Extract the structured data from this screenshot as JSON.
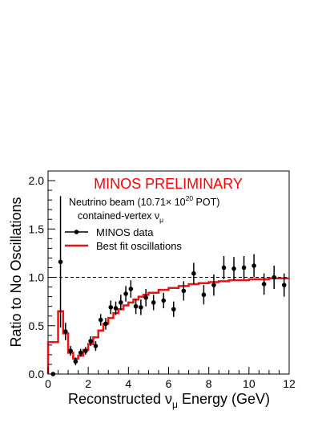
{
  "chart_data": {
    "type": "line",
    "title": "MINOS PRELIMINARY",
    "title_color": "#ff0000",
    "xlabel": "Reconstructed ν_μ Energy (GeV)",
    "xlabel_parts": {
      "pre": "Reconstructed ",
      "nu": "ν",
      "mu": "μ",
      "post": " Energy (GeV)"
    },
    "ylabel": "Ratio to No Oscillations",
    "xlim": [
      0,
      12
    ],
    "ylim": [
      0,
      2.1
    ],
    "xticks": [
      "0",
      "2",
      "4",
      "6",
      "8",
      "10",
      "12"
    ],
    "yticks": [
      "0.0",
      "0.5",
      "1.0",
      "1.5",
      "2.0"
    ],
    "reference_line": {
      "y": 1.0,
      "style": "dashed"
    },
    "annotation": {
      "line1": {
        "pre": "Neutrino beam (10.71",
        "times": "×",
        "base": " 10",
        "exp": "20",
        "post": " POT)"
      },
      "line2": {
        "pre": "contained-vertex ",
        "nu": "ν",
        "mu": "μ"
      }
    },
    "legend": {
      "position": "top-left",
      "entries": [
        "MINOS data",
        "Best fit oscillations"
      ]
    },
    "series": [
      {
        "name": "MINOS data",
        "kind": "points_with_errors",
        "color": "#000000",
        "points": [
          {
            "x": 0.25,
            "y": 0.0,
            "err": 0.0
          },
          {
            "x": 0.62,
            "y": 1.16,
            "err": 0.68
          },
          {
            "x": 0.87,
            "y": 0.44,
            "err": 0.09
          },
          {
            "x": 1.12,
            "y": 0.24,
            "err": 0.05
          },
          {
            "x": 1.37,
            "y": 0.13,
            "err": 0.04
          },
          {
            "x": 1.62,
            "y": 0.22,
            "err": 0.04
          },
          {
            "x": 1.87,
            "y": 0.24,
            "err": 0.04
          },
          {
            "x": 2.12,
            "y": 0.34,
            "err": 0.05
          },
          {
            "x": 2.37,
            "y": 0.29,
            "err": 0.05
          },
          {
            "x": 2.62,
            "y": 0.56,
            "err": 0.06
          },
          {
            "x": 2.87,
            "y": 0.52,
            "err": 0.06
          },
          {
            "x": 3.12,
            "y": 0.69,
            "err": 0.07
          },
          {
            "x": 3.37,
            "y": 0.68,
            "err": 0.07
          },
          {
            "x": 3.62,
            "y": 0.74,
            "err": 0.08
          },
          {
            "x": 3.87,
            "y": 0.83,
            "err": 0.08
          },
          {
            "x": 4.12,
            "y": 0.88,
            "err": 0.09
          },
          {
            "x": 4.37,
            "y": 0.7,
            "err": 0.08
          },
          {
            "x": 4.62,
            "y": 0.69,
            "err": 0.08
          },
          {
            "x": 4.87,
            "y": 0.79,
            "err": 0.09
          },
          {
            "x": 5.25,
            "y": 0.74,
            "err": 0.08
          },
          {
            "x": 5.75,
            "y": 0.76,
            "err": 0.08
          },
          {
            "x": 6.25,
            "y": 0.67,
            "err": 0.08
          },
          {
            "x": 6.75,
            "y": 0.86,
            "err": 0.1
          },
          {
            "x": 7.25,
            "y": 1.04,
            "err": 0.11
          },
          {
            "x": 7.75,
            "y": 0.82,
            "err": 0.1
          },
          {
            "x": 8.25,
            "y": 0.92,
            "err": 0.11
          },
          {
            "x": 8.75,
            "y": 1.1,
            "err": 0.12
          },
          {
            "x": 9.25,
            "y": 1.09,
            "err": 0.12
          },
          {
            "x": 9.75,
            "y": 1.1,
            "err": 0.12
          },
          {
            "x": 10.25,
            "y": 1.12,
            "err": 0.12
          },
          {
            "x": 10.75,
            "y": 0.93,
            "err": 0.11
          },
          {
            "x": 11.25,
            "y": 1.0,
            "err": 0.12
          },
          {
            "x": 11.75,
            "y": 0.92,
            "err": 0.12
          }
        ]
      },
      {
        "name": "Best fit oscillations",
        "kind": "step",
        "color": "#ee1111",
        "edges": [
          0,
          0.5,
          0.75,
          1.0,
          1.25,
          1.5,
          1.75,
          2.0,
          2.25,
          2.5,
          2.75,
          3.0,
          3.25,
          3.5,
          3.75,
          4.0,
          4.25,
          4.5,
          4.75,
          5.0,
          5.5,
          6.0,
          6.5,
          7.0,
          7.5,
          8.0,
          8.5,
          9.0,
          9.5,
          10.0,
          10.5,
          11.0,
          11.5,
          12.0
        ],
        "values": [
          0.33,
          0.65,
          0.42,
          0.22,
          0.16,
          0.19,
          0.25,
          0.31,
          0.38,
          0.45,
          0.52,
          0.58,
          0.63,
          0.67,
          0.71,
          0.74,
          0.77,
          0.8,
          0.82,
          0.84,
          0.87,
          0.89,
          0.91,
          0.93,
          0.94,
          0.95,
          0.96,
          0.97,
          0.97,
          0.98,
          0.98,
          0.99,
          0.99
        ]
      }
    ]
  }
}
